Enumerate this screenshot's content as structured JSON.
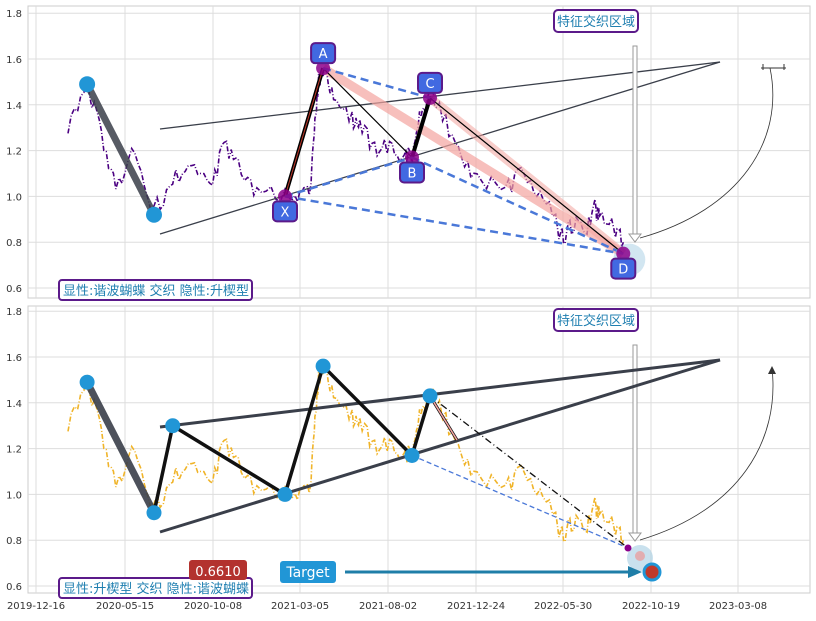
{
  "chart_data": [
    {
      "type": "line",
      "panel": "top",
      "ylim": [
        0.57,
        1.82
      ],
      "yticks": [
        "0.6",
        "0.8",
        "1.0",
        "1.2",
        "1.4",
        "1.6",
        "1.8"
      ],
      "grid": true,
      "legend_box": "显性:谐波蝴蝶 交织 隐性:升楔型",
      "region_label": "特征交织区域",
      "series": [
        {
          "color": "#4b0082",
          "style": "dash-dot",
          "points": [
            [
              0.0,
              1.32
            ],
            [
              20.0,
              1.5
            ],
            [
              35.0,
              1.28
            ],
            [
              50.0,
              1.05
            ],
            [
              70.0,
              1.2
            ],
            [
              90.0,
              0.93
            ],
            [
              110.0,
              1.08
            ],
            [
              130.0,
              1.14
            ],
            [
              150.0,
              1.02
            ],
            [
              165.0,
              1.24
            ],
            [
              180.0,
              1.12
            ],
            [
              200.0,
              1.03
            ],
            [
              230.0,
              1.0
            ],
            [
              250.0,
              1.0
            ],
            [
              265.0,
              1.06
            ],
            [
              270.0,
              1.35
            ],
            [
              276.0,
              1.52
            ],
            [
              281.0,
              1.56
            ],
            [
              295.0,
              1.44
            ],
            [
              320.0,
              1.34
            ],
            [
              330.0,
              1.3
            ],
            [
              350.0,
              1.22
            ],
            [
              370.0,
              1.2
            ],
            [
              390.0,
              1.18
            ],
            [
              400.0,
              1.17
            ],
            [
              410.0,
              1.36
            ],
            [
              420.0,
              1.44
            ],
            [
              430.0,
              1.38
            ],
            [
              450.0,
              1.2
            ],
            [
              470.0,
              1.08
            ],
            [
              500.0,
              1.03
            ],
            [
              520.0,
              1.1
            ],
            [
              540.0,
              1.0
            ],
            [
              560.0,
              0.82
            ],
            [
              570.0,
              0.88
            ],
            [
              585.0,
              0.85
            ],
            [
              595.0,
              0.95
            ],
            [
              600.0,
              0.9
            ],
            [
              615.0,
              0.86
            ],
            [
              625.0,
              0.8
            ]
          ]
        }
      ],
      "pattern_points": [
        {
          "label": "X",
          "y": 1.0
        },
        {
          "label": "A",
          "y": 1.56
        },
        {
          "label": "B",
          "y": 1.17
        },
        {
          "label": "C",
          "y": 1.43
        },
        {
          "label": "D",
          "y": 0.75
        }
      ],
      "wedge_pivots": [
        1.49,
        0.92
      ]
    },
    {
      "type": "line",
      "panel": "bottom",
      "ylim": [
        0.57,
        1.82
      ],
      "yticks": [
        "0.6",
        "0.8",
        "1.0",
        "1.2",
        "1.4",
        "1.6",
        "1.8"
      ],
      "xticks": [
        "2019-12-16",
        "2020-05-15",
        "2020-10-08",
        "2021-03-05",
        "2021-08-02",
        "2021-12-24",
        "2022-05-30",
        "2022-10-19",
        "2023-03-08"
      ],
      "grid": true,
      "legend_box": "显性:升楔型 交织 隐性:谐波蝴蝶",
      "region_label": "特征交织区域",
      "price_label": "0.6610",
      "target_label": "Target",
      "series": [
        {
          "color": "#f0b429",
          "style": "dash-dot",
          "points": [
            [
              0.0,
              1.32
            ],
            [
              20.0,
              1.5
            ],
            [
              35.0,
              1.28
            ],
            [
              50.0,
              1.05
            ],
            [
              70.0,
              1.2
            ],
            [
              90.0,
              0.93
            ],
            [
              110.0,
              1.08
            ],
            [
              130.0,
              1.14
            ],
            [
              150.0,
              1.02
            ],
            [
              165.0,
              1.24
            ],
            [
              180.0,
              1.12
            ],
            [
              200.0,
              1.03
            ],
            [
              230.0,
              1.0
            ],
            [
              250.0,
              1.0
            ],
            [
              265.0,
              1.06
            ],
            [
              270.0,
              1.35
            ],
            [
              276.0,
              1.52
            ],
            [
              281.0,
              1.56
            ],
            [
              295.0,
              1.44
            ],
            [
              320.0,
              1.34
            ],
            [
              330.0,
              1.3
            ],
            [
              350.0,
              1.22
            ],
            [
              370.0,
              1.2
            ],
            [
              390.0,
              1.18
            ],
            [
              400.0,
              1.17
            ],
            [
              410.0,
              1.36
            ],
            [
              420.0,
              1.44
            ],
            [
              430.0,
              1.38
            ],
            [
              450.0,
              1.2
            ],
            [
              470.0,
              1.08
            ],
            [
              500.0,
              1.03
            ],
            [
              520.0,
              1.1
            ],
            [
              540.0,
              1.0
            ],
            [
              560.0,
              0.82
            ],
            [
              570.0,
              0.88
            ],
            [
              585.0,
              0.85
            ],
            [
              595.0,
              0.95
            ],
            [
              600.0,
              0.9
            ],
            [
              615.0,
              0.86
            ],
            [
              625.0,
              0.8
            ]
          ]
        }
      ],
      "pivots": [
        1.49,
        0.92,
        1.3,
        1.0,
        1.56,
        1.17,
        1.43
      ],
      "target_y": 0.661
    }
  ],
  "colors": {
    "purple": "#4b0082",
    "box_border": "#5b1a8a",
    "teal_text": "#1f7fb0",
    "pattern_fill": "#4169e1",
    "blue_dash": "#4a78d8",
    "pivot": "#2196d6",
    "wedge": "#3a3f4a",
    "orange": "#f0b429",
    "salmon": "#f4a5a0",
    "target_arrow": "#1f7ea8",
    "price_red": "#b3322e"
  }
}
